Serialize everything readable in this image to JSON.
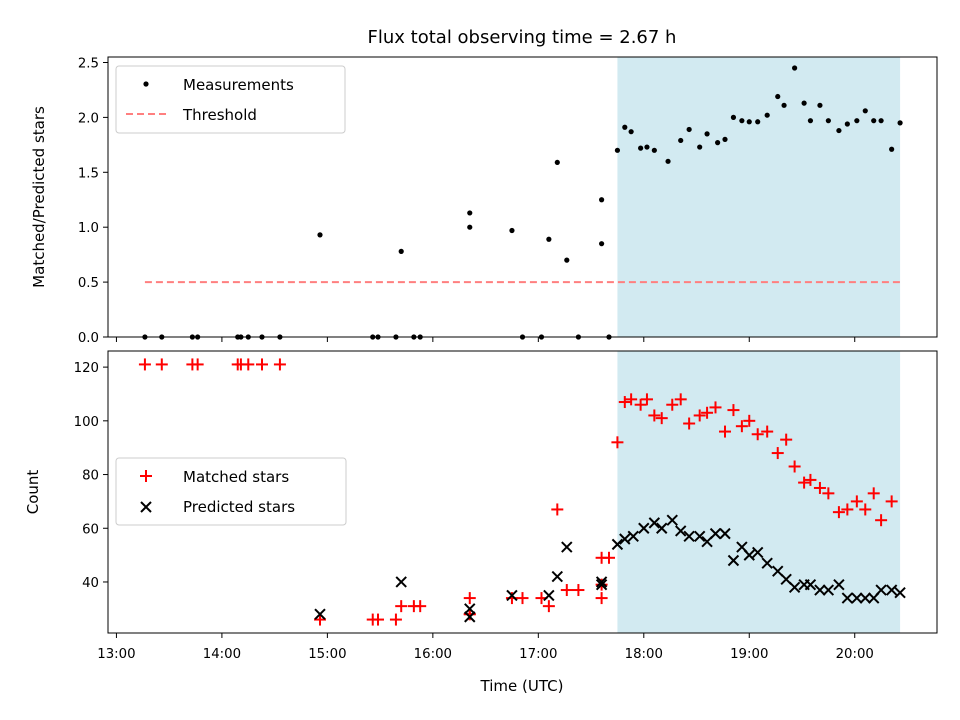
{
  "title": "Flux total observing time = 2.67 h",
  "colors": {
    "measurement": "#000000",
    "threshold": "#ff7f7f",
    "matched": "#ff0000",
    "predicted": "#000000",
    "highlight": "#add8e6"
  },
  "chart_data": [
    {
      "type": "scatter",
      "ylabel": "Matched/Predicted stars",
      "xlabel": "",
      "ylim": [
        0,
        2.55
      ],
      "yticks": [
        0.0,
        0.5,
        1.0,
        1.5,
        2.0,
        2.5
      ],
      "ytick_labels": [
        "0.0",
        "0.5",
        "1.0",
        "1.5",
        "2.0",
        "2.5"
      ],
      "xlim_hours": [
        12.92,
        20.78
      ],
      "highlight_span_hours": [
        17.75,
        20.43
      ],
      "legend": {
        "placement": "upper-left",
        "entries": [
          "Measurements",
          "Threshold"
        ]
      },
      "threshold": {
        "name": "Threshold",
        "value": 0.5,
        "x_hours": [
          13.27,
          20.43
        ]
      },
      "series": [
        {
          "name": "Measurements",
          "marker": "dot",
          "points": [
            [
              13.27,
              0.0
            ],
            [
              13.43,
              0.0
            ],
            [
              13.72,
              0.0
            ],
            [
              13.77,
              0.0
            ],
            [
              14.15,
              0.0
            ],
            [
              14.18,
              0.0
            ],
            [
              14.25,
              0.0
            ],
            [
              14.38,
              0.0
            ],
            [
              14.55,
              0.0
            ],
            [
              14.93,
              0.93
            ],
            [
              15.43,
              0.0
            ],
            [
              15.48,
              0.0
            ],
            [
              15.65,
              0.0
            ],
            [
              15.7,
              0.78
            ],
            [
              15.82,
              0.0
            ],
            [
              15.88,
              0.0
            ],
            [
              16.35,
              1.13
            ],
            [
              16.35,
              1.0
            ],
            [
              16.75,
              0.97
            ],
            [
              16.85,
              0.0
            ],
            [
              17.03,
              0.0
            ],
            [
              17.1,
              0.89
            ],
            [
              17.18,
              1.59
            ],
            [
              17.27,
              0.7
            ],
            [
              17.38,
              0.0
            ],
            [
              17.6,
              1.25
            ],
            [
              17.6,
              0.85
            ],
            [
              17.67,
              0.0
            ],
            [
              17.75,
              1.7
            ],
            [
              17.82,
              1.91
            ],
            [
              17.88,
              1.87
            ],
            [
              17.97,
              1.72
            ],
            [
              18.03,
              1.73
            ],
            [
              18.1,
              1.7
            ],
            [
              18.23,
              1.6
            ],
            [
              18.35,
              1.79
            ],
            [
              18.43,
              1.89
            ],
            [
              18.53,
              1.73
            ],
            [
              18.6,
              1.85
            ],
            [
              18.7,
              1.77
            ],
            [
              18.77,
              1.8
            ],
            [
              18.85,
              2.0
            ],
            [
              18.93,
              1.97
            ],
            [
              19.0,
              1.96
            ],
            [
              19.08,
              1.96
            ],
            [
              19.17,
              2.02
            ],
            [
              19.27,
              2.19
            ],
            [
              19.33,
              2.11
            ],
            [
              19.43,
              2.45
            ],
            [
              19.52,
              2.13
            ],
            [
              19.58,
              1.97
            ],
            [
              19.67,
              2.11
            ],
            [
              19.75,
              1.97
            ],
            [
              19.85,
              1.88
            ],
            [
              19.93,
              1.94
            ],
            [
              20.02,
              1.97
            ],
            [
              20.1,
              2.06
            ],
            [
              20.18,
              1.97
            ],
            [
              20.25,
              1.97
            ],
            [
              20.35,
              1.71
            ],
            [
              20.43,
              1.95
            ]
          ]
        }
      ]
    },
    {
      "type": "scatter",
      "ylabel": "Count",
      "xlabel": "Time (UTC)",
      "ylim": [
        21,
        126
      ],
      "yticks": [
        40,
        60,
        80,
        100,
        120
      ],
      "ytick_labels": [
        "40",
        "60",
        "80",
        "100",
        "120"
      ],
      "xlim_hours": [
        12.92,
        20.78
      ],
      "xticks_hours": [
        13,
        14,
        15,
        16,
        17,
        18,
        19,
        20
      ],
      "xtick_labels": [
        "13:00",
        "14:00",
        "15:00",
        "16:00",
        "17:00",
        "18:00",
        "19:00",
        "20:00"
      ],
      "highlight_span_hours": [
        17.75,
        20.43
      ],
      "legend": {
        "placement": "center-left",
        "entries": [
          "Matched stars",
          "Predicted stars"
        ]
      },
      "series": [
        {
          "name": "Matched stars",
          "marker": "plus",
          "points": [
            [
              13.27,
              121
            ],
            [
              13.43,
              121
            ],
            [
              13.72,
              121
            ],
            [
              13.77,
              121
            ],
            [
              14.15,
              121
            ],
            [
              14.18,
              121
            ],
            [
              14.25,
              121
            ],
            [
              14.38,
              121
            ],
            [
              14.55,
              121
            ],
            [
              14.93,
              26
            ],
            [
              15.43,
              26
            ],
            [
              15.48,
              26
            ],
            [
              15.65,
              26
            ],
            [
              15.7,
              31
            ],
            [
              15.82,
              31
            ],
            [
              15.88,
              31
            ],
            [
              16.35,
              34
            ],
            [
              16.35,
              28
            ],
            [
              16.35,
              28
            ],
            [
              16.75,
              34
            ],
            [
              16.85,
              34
            ],
            [
              17.03,
              34
            ],
            [
              17.1,
              31
            ],
            [
              17.18,
              67
            ],
            [
              17.27,
              37
            ],
            [
              17.38,
              37
            ],
            [
              17.6,
              34
            ],
            [
              17.6,
              39
            ],
            [
              17.6,
              49
            ],
            [
              17.67,
              49
            ],
            [
              17.75,
              92
            ],
            [
              17.82,
              107
            ],
            [
              17.88,
              108
            ],
            [
              17.97,
              106
            ],
            [
              18.03,
              108
            ],
            [
              18.1,
              102
            ],
            [
              18.17,
              101
            ],
            [
              18.27,
              106
            ],
            [
              18.35,
              108
            ],
            [
              18.43,
              99
            ],
            [
              18.53,
              102
            ],
            [
              18.6,
              103
            ],
            [
              18.68,
              105
            ],
            [
              18.77,
              96
            ],
            [
              18.85,
              104
            ],
            [
              18.93,
              98
            ],
            [
              19.0,
              100
            ],
            [
              19.08,
              95
            ],
            [
              19.17,
              96
            ],
            [
              19.27,
              88
            ],
            [
              19.35,
              93
            ],
            [
              19.43,
              83
            ],
            [
              19.52,
              77
            ],
            [
              19.58,
              78
            ],
            [
              19.67,
              75
            ],
            [
              19.75,
              73
            ],
            [
              19.85,
              66
            ],
            [
              19.93,
              67
            ],
            [
              20.02,
              70
            ],
            [
              20.1,
              67
            ],
            [
              20.18,
              73
            ],
            [
              20.25,
              63
            ],
            [
              20.35,
              70
            ]
          ]
        },
        {
          "name": "Predicted stars",
          "marker": "x",
          "points": [
            [
              14.93,
              28
            ],
            [
              15.7,
              40
            ],
            [
              16.35,
              30
            ],
            [
              16.35,
              27
            ],
            [
              16.75,
              35
            ],
            [
              17.1,
              35
            ],
            [
              17.18,
              42
            ],
            [
              17.27,
              53
            ],
            [
              17.6,
              39
            ],
            [
              17.6,
              40
            ],
            [
              17.75,
              54
            ],
            [
              17.82,
              56
            ],
            [
              17.9,
              57
            ],
            [
              18.0,
              60
            ],
            [
              18.1,
              62
            ],
            [
              18.17,
              60
            ],
            [
              18.27,
              63
            ],
            [
              18.35,
              59
            ],
            [
              18.43,
              57
            ],
            [
              18.53,
              57
            ],
            [
              18.6,
              55
            ],
            [
              18.68,
              58
            ],
            [
              18.77,
              58
            ],
            [
              18.85,
              48
            ],
            [
              18.93,
              53
            ],
            [
              19.0,
              50
            ],
            [
              19.08,
              51
            ],
            [
              19.17,
              47
            ],
            [
              19.27,
              44
            ],
            [
              19.35,
              41
            ],
            [
              19.43,
              38
            ],
            [
              19.52,
              39
            ],
            [
              19.58,
              39
            ],
            [
              19.67,
              37
            ],
            [
              19.75,
              37
            ],
            [
              19.85,
              39
            ],
            [
              19.93,
              34
            ],
            [
              20.02,
              34
            ],
            [
              20.1,
              34
            ],
            [
              20.18,
              34
            ],
            [
              20.25,
              37
            ],
            [
              20.35,
              37
            ],
            [
              20.43,
              36
            ]
          ]
        }
      ]
    }
  ]
}
